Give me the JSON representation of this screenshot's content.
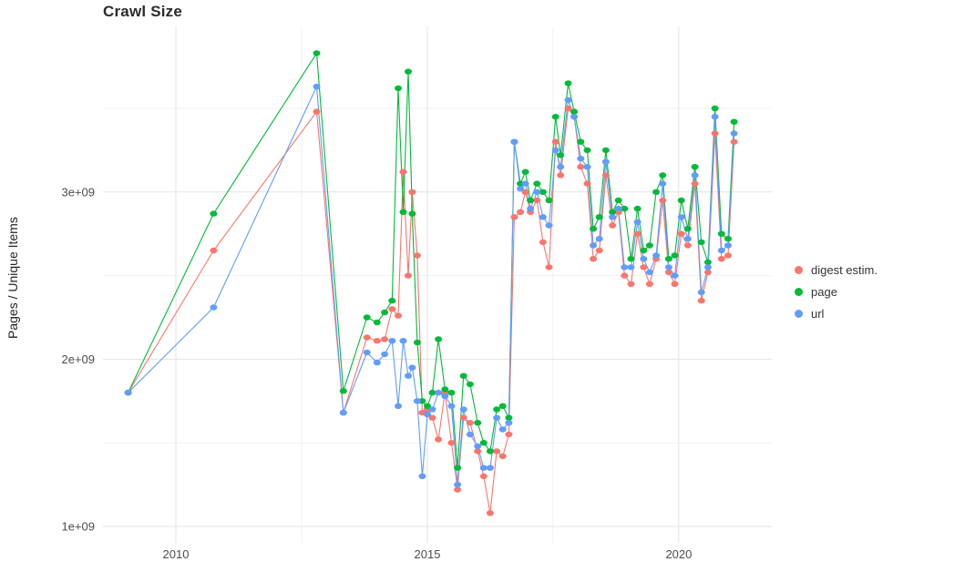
{
  "chart_data": {
    "type": "line",
    "title": "Crawl Size",
    "xlabel": "",
    "ylabel": "Pages / Unique Items",
    "unit": "count in billions (1e9)",
    "grid": true,
    "legend_position": "right",
    "xlim": [
      2008.55,
      2021.85
    ],
    "ylim": [
      1.0,
      3.99
    ],
    "x_ticks": {
      "values": [
        2010,
        2015,
        2020
      ],
      "labels": [
        "2010",
        "2015",
        "2020"
      ]
    },
    "x_minor_ticks": [
      2012.5,
      2017.5
    ],
    "y_ticks": {
      "values": [
        1,
        2,
        3
      ],
      "labels": [
        "1e+09",
        "2e+09",
        "3e+09"
      ]
    },
    "y_minor_ticks": [
      1.5,
      2.5,
      3.5
    ],
    "x": [
      2009.05,
      2010.75,
      2012.8,
      2013.33,
      2013.8,
      2014.0,
      2014.15,
      2014.3,
      2014.42,
      2014.52,
      2014.62,
      2014.7,
      2014.8,
      2014.9,
      2015.0,
      2015.1,
      2015.22,
      2015.35,
      2015.48,
      2015.6,
      2015.72,
      2015.85,
      2016.0,
      2016.12,
      2016.25,
      2016.38,
      2016.5,
      2016.62,
      2016.73,
      2016.85,
      2016.95,
      2017.05,
      2017.18,
      2017.3,
      2017.42,
      2017.55,
      2017.65,
      2017.8,
      2017.92,
      2018.05,
      2018.18,
      2018.3,
      2018.42,
      2018.55,
      2018.68,
      2018.8,
      2018.92,
      2019.05,
      2019.18,
      2019.3,
      2019.42,
      2019.55,
      2019.68,
      2019.8,
      2019.92,
      2020.05,
      2020.18,
      2020.32,
      2020.45,
      2020.58,
      2020.72,
      2020.85,
      2020.98,
      2021.1
    ],
    "series": [
      {
        "name": "digest estim.",
        "color": "#F8766D",
        "values": [
          1.8,
          2.65,
          3.48,
          1.68,
          2.13,
          2.11,
          2.12,
          2.3,
          2.26,
          3.12,
          2.5,
          3.0,
          2.62,
          1.68,
          1.7,
          1.65,
          1.52,
          1.8,
          1.5,
          1.22,
          1.65,
          1.62,
          1.45,
          1.3,
          1.08,
          1.45,
          1.42,
          1.55,
          2.85,
          2.88,
          3.0,
          2.88,
          2.95,
          2.7,
          2.55,
          3.3,
          3.1,
          3.5,
          3.45,
          3.15,
          3.05,
          2.6,
          2.65,
          3.1,
          2.8,
          2.88,
          2.5,
          2.45,
          2.75,
          2.55,
          2.45,
          2.6,
          2.95,
          2.52,
          2.45,
          2.75,
          2.68,
          3.05,
          2.35,
          2.52,
          3.35,
          2.6,
          2.62,
          3.3
        ]
      },
      {
        "name": "page",
        "color": "#00BA38",
        "values": [
          1.8,
          2.87,
          3.83,
          1.81,
          2.25,
          2.22,
          2.28,
          2.35,
          3.62,
          2.88,
          3.72,
          2.87,
          2.1,
          1.75,
          1.72,
          1.8,
          2.12,
          1.82,
          1.8,
          1.35,
          1.9,
          1.85,
          1.62,
          1.5,
          1.45,
          1.7,
          1.72,
          1.65,
          3.3,
          3.05,
          3.12,
          2.95,
          3.05,
          3.0,
          2.95,
          3.45,
          3.22,
          3.65,
          3.48,
          3.3,
          3.25,
          2.78,
          2.85,
          3.25,
          2.88,
          2.95,
          2.9,
          2.6,
          2.9,
          2.65,
          2.68,
          3.0,
          3.1,
          2.6,
          2.62,
          2.95,
          2.78,
          3.15,
          2.7,
          2.58,
          3.5,
          2.75,
          2.72,
          3.42
        ]
      },
      {
        "name": "url",
        "color": "#619CFF",
        "values": [
          1.8,
          2.31,
          3.63,
          1.68,
          2.04,
          1.98,
          2.03,
          2.11,
          1.72,
          2.11,
          1.9,
          1.95,
          1.75,
          1.3,
          1.67,
          1.7,
          1.8,
          1.78,
          1.72,
          1.25,
          1.7,
          1.55,
          1.48,
          1.35,
          1.35,
          1.65,
          1.58,
          1.62,
          3.3,
          3.02,
          3.05,
          2.9,
          3.0,
          2.85,
          2.8,
          3.25,
          3.15,
          3.55,
          3.45,
          3.2,
          3.15,
          2.68,
          2.72,
          3.18,
          2.85,
          2.9,
          2.55,
          2.55,
          2.82,
          2.6,
          2.52,
          2.62,
          3.05,
          2.55,
          2.5,
          2.85,
          2.72,
          3.1,
          2.4,
          2.55,
          3.45,
          2.65,
          2.68,
          3.35
        ]
      }
    ]
  }
}
